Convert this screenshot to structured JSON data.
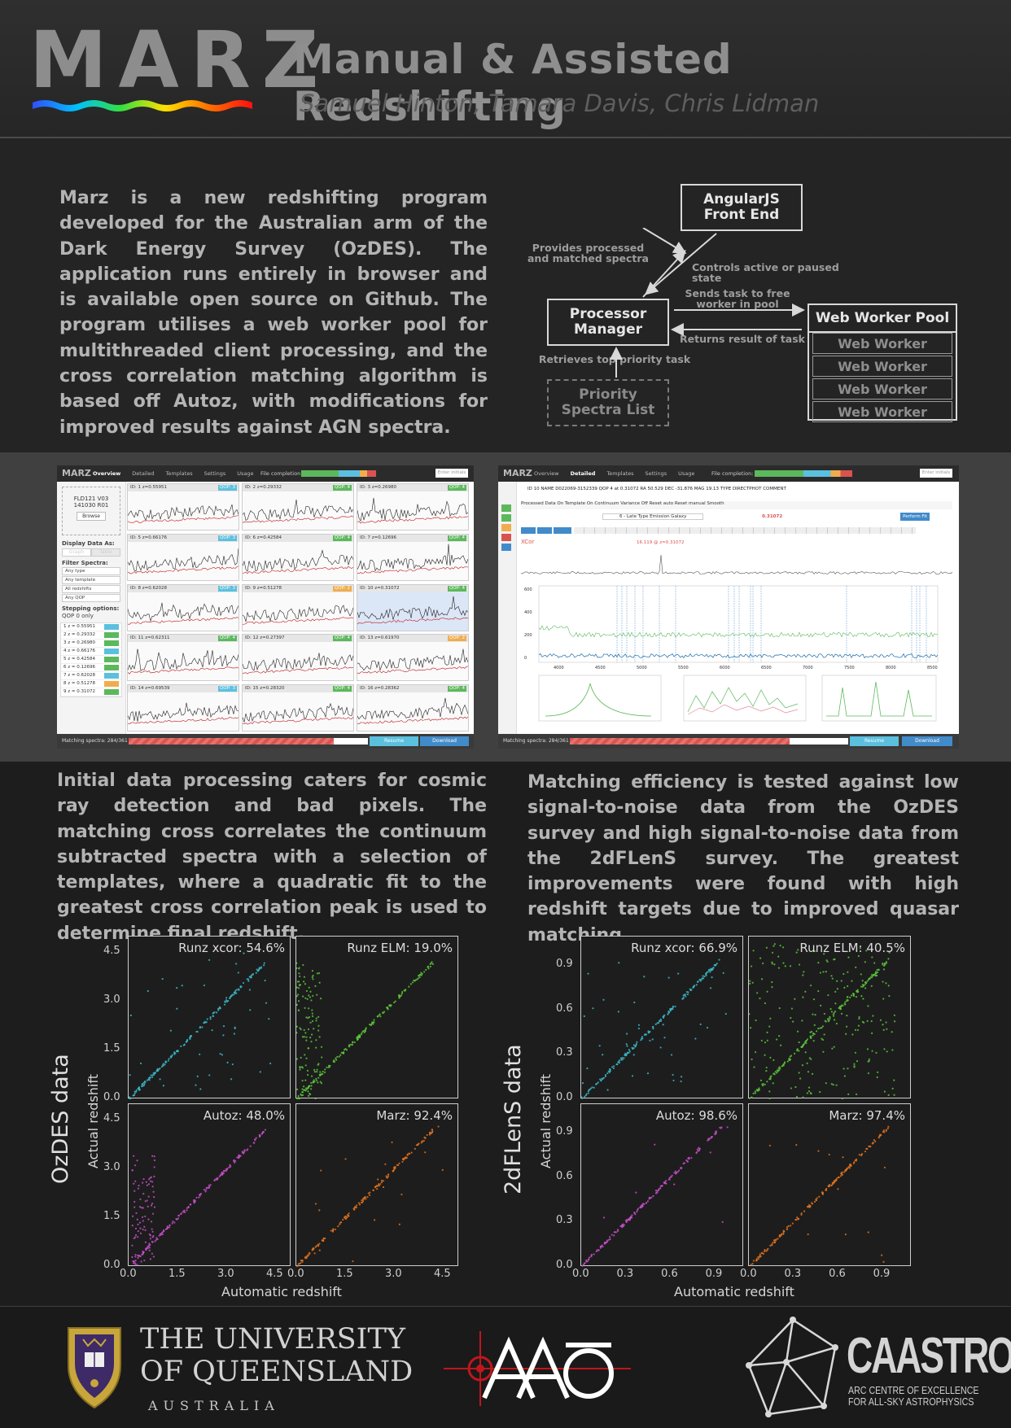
{
  "header": {
    "logo": "MARZ",
    "title": "Manual & Assisted Redshifting",
    "authors": "Samuel Hinton, Tamara Davis, Chris Lidman"
  },
  "intro": "Marz is a new redshifting program developed for the Australian arm of the Dark Energy Survey (OzDES). The application runs entirely in browser and is available open source on Github. The program utilises a web worker pool for multithreaded client processing, and the cross correlation matching algorithm is based off Autoz, with modifications for improved results against AGN spectra.",
  "diagram": {
    "angular": "AngularJS Front End",
    "processor": "Processor Manager",
    "pool": "Web Worker Pool",
    "worker": "Web Worker",
    "priority": "Priority Spectra List",
    "label_provides": "Provides processed and matched spectra",
    "label_controls": "Controls active or paused state",
    "label_sends": "Sends task to free worker in pool",
    "label_returns": "Returns result of task",
    "label_retrieves": "Retrieves top priority task"
  },
  "screenshots": {
    "left": {
      "logo": "MARZ",
      "tabs": [
        "Overview",
        "Detailed",
        "Templates",
        "Settings",
        "Usage"
      ],
      "file_completion": "File completion:",
      "enter_initials": "Enter initials",
      "file_id": "FLD121 V03",
      "file_id2": "141030 R01",
      "browse": "Browse",
      "display_as": "Display Data As:",
      "graph": "Graph",
      "table": "Table",
      "filter": "Filter Spectra:",
      "filters": [
        "Any type",
        "Any template",
        "All redshifts",
        "Any QOP"
      ],
      "stepping": "Stepping options:",
      "qop0": "QOP 0 only",
      "list": [
        "1  z = 0.55951",
        "2  z = 0.29332",
        "3  z = 0.26980",
        "4  z = 0.66176",
        "5  z = 0.42584",
        "6  z = 0.12696",
        "7  z = 0.62028",
        "8  z = 0.51278",
        "9  z = 0.31072"
      ],
      "cells": [
        {
          "id": "ID: 1",
          "z": "z=0.55951",
          "qop": "QOP: 3"
        },
        {
          "id": "ID: 2",
          "z": "z=0.29332",
          "qop": "QOP: 4"
        },
        {
          "id": "ID: 3",
          "z": "z=0.26980",
          "qop": "QOP: 4"
        },
        {
          "id": "ID: 5",
          "z": "z=0.66176",
          "qop": "QOP: 3"
        },
        {
          "id": "ID: 6",
          "z": "z=0.42584",
          "qop": "QOP: 4"
        },
        {
          "id": "ID: 7",
          "z": "z=0.12696",
          "qop": "QOP: 4"
        },
        {
          "id": "ID: 8",
          "z": "z=0.62028",
          "qop": "QOP: 3"
        },
        {
          "id": "ID: 9",
          "z": "z=0.51278",
          "qop": "QOP: 2"
        },
        {
          "id": "ID: 10",
          "z": "z=0.31072",
          "qop": "QOP: 4"
        },
        {
          "id": "ID: 11",
          "z": "z=0.62311",
          "qop": "QOP: 4"
        },
        {
          "id": "ID: 12",
          "z": "z=0.27397",
          "qop": "QOP: 4"
        },
        {
          "id": "ID: 13",
          "z": "z=0.61970",
          "qop": "QOP: 2"
        },
        {
          "id": "ID: 14",
          "z": "z=0.69539",
          "qop": "QOP: 3"
        },
        {
          "id": "ID: 15",
          "z": "z=0.28320",
          "qop": "QOP: 4"
        },
        {
          "id": "ID: 16",
          "z": "z=0.28362",
          "qop": "QOP: 4"
        }
      ],
      "matching": "Matching spectra: 284/361",
      "resume": "Resume",
      "download": "Download"
    },
    "right": {
      "logo": "MARZ",
      "tabs": [
        "Overview",
        "Detailed",
        "Templates",
        "Settings",
        "Usage"
      ],
      "file_completion": "File completion:",
      "enter_initials": "Enter initials",
      "info": "ID 10   NAME D022069-3152339   QOP 4 at 0.31072   RA 50.529   DEC -31.876   MAG 19.13   TYPE DIRECTPHOT   COMMENT",
      "controls": "Processed   Data   On   Template   On   Continuum   Variance   Off   Reset auto   Reset manual   Smooth",
      "template": "6 - Late Type Emission Galaxy",
      "redshift": "0.31072",
      "perform": "Perform Fit",
      "xcorr": "XCor",
      "peak": "16.119 @ z=0.31072",
      "axis_main": [
        "4000",
        "4500",
        "5000",
        "5500",
        "6000",
        "6500",
        "7000",
        "7500",
        "8000",
        "8500"
      ],
      "y_main": [
        "600",
        "400",
        "200",
        "0"
      ],
      "matching": "Matching spectra: 284/361",
      "resume": "Resume",
      "download": "Download"
    }
  },
  "para2": "Initial data processing caters for cosmic ray detection and bad pixels. The matching cross correlates the continuum subtracted spectra with a selection of templates, where a quadratic fit to the greatest cross correlation peak is used to determine final redshift.",
  "para3": "Matching efficiency is tested against low signal-to-noise data from the OzDES survey and high signal-to-noise data from the 2dFLenS survey. The greatest improvements were found with high redshift targets due to improved quasar matching.",
  "plots": {
    "xlabel": "Automatic redshift",
    "ylabel": "Actual redshift",
    "left_group": "OzDES data",
    "right_group": "2dFLenS data",
    "left_ticks": [
      "0.0",
      "1.5",
      "3.0",
      "4.5"
    ],
    "right_ticks": [
      "0.0",
      "0.3",
      "0.6",
      "0.9"
    ]
  },
  "chart_data": [
    {
      "type": "scatter",
      "title": "Runz xcor: 54.6%",
      "xlim": [
        0,
        5
      ],
      "ylim": [
        0,
        5
      ],
      "color": "#3bb8c8"
    },
    {
      "type": "scatter",
      "title": "Runz ELM: 19.0%",
      "xlim": [
        0,
        5
      ],
      "ylim": [
        0,
        5
      ],
      "color": "#5cc43c"
    },
    {
      "type": "scatter",
      "title": "Autoz: 48.0%",
      "xlim": [
        0,
        5
      ],
      "ylim": [
        0,
        5
      ],
      "color": "#c64fc8"
    },
    {
      "type": "scatter",
      "title": "Marz: 92.4%",
      "xlim": [
        0,
        5
      ],
      "ylim": [
        0,
        5
      ],
      "color": "#e0721e"
    },
    {
      "type": "scatter",
      "title": "Runz xcor: 66.9%",
      "xlim": [
        0,
        1.1
      ],
      "ylim": [
        0,
        1.1
      ],
      "color": "#3bb8c8"
    },
    {
      "type": "scatter",
      "title": "Runz ELM: 40.5%",
      "xlim": [
        0,
        1.1
      ],
      "ylim": [
        0,
        1.1
      ],
      "color": "#5cc43c"
    },
    {
      "type": "scatter",
      "title": "Autoz: 98.6%",
      "xlim": [
        0,
        1.1
      ],
      "ylim": [
        0,
        1.1
      ],
      "color": "#c64fc8"
    },
    {
      "type": "scatter",
      "title": "Marz: 97.4%",
      "xlim": [
        0,
        1.1
      ],
      "ylim": [
        0,
        1.1
      ],
      "color": "#e0721e"
    }
  ],
  "footer": {
    "uq_line1": "THE UNIVERSITY",
    "uq_line2": "OF QUEENSLAND",
    "uq_line3": "AUSTRALIA",
    "aao": "AAO",
    "caastro": "CAASTRO",
    "caastro_sub1": "ARC CENTRE OF EXCELLENCE",
    "caastro_sub2": "FOR ALL-SKY ASTROPHYSICS"
  }
}
